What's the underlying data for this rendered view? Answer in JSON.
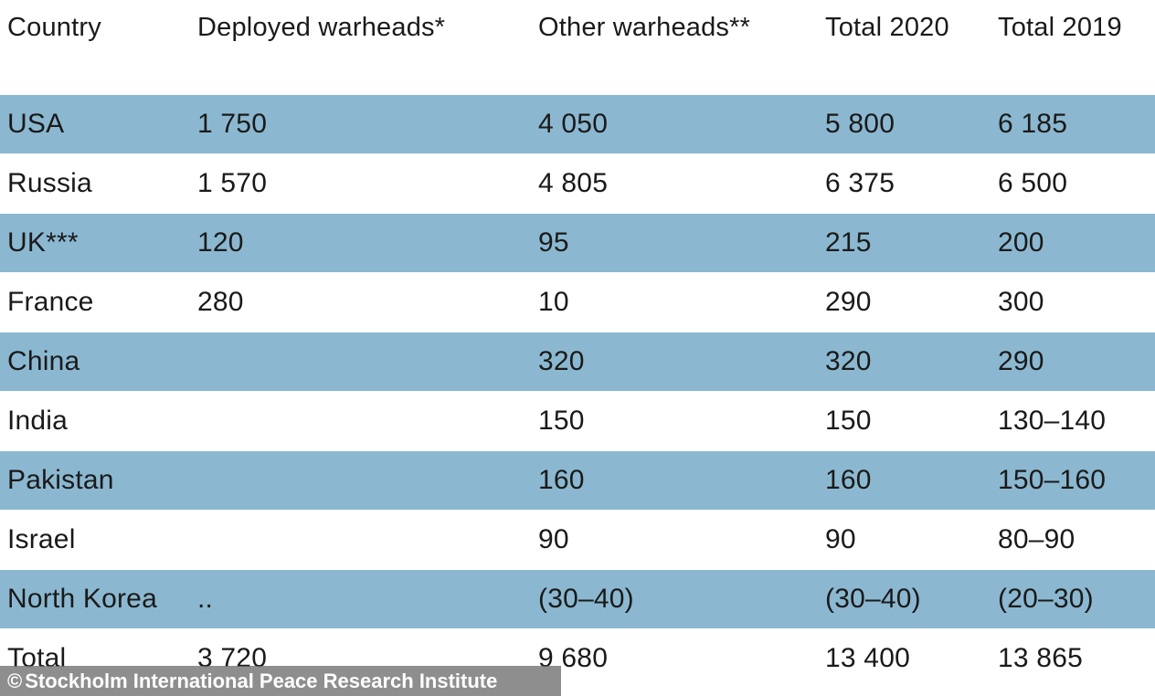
{
  "table": {
    "headers": [
      "Country",
      "Deployed warheads*",
      "Other warheads**",
      "Total 2020",
      "Total 2019"
    ],
    "rows": [
      [
        "USA",
        "1 750",
        "4 050",
        "5 800",
        "6 185"
      ],
      [
        "Russia",
        "1 570",
        "4 805",
        "6 375",
        "6 500"
      ],
      [
        "UK***",
        "120",
        "95",
        "215",
        "200"
      ],
      [
        "France",
        "280",
        "10",
        "290",
        "300"
      ],
      [
        "China",
        "",
        "320",
        "320",
        "290"
      ],
      [
        "India",
        "",
        "150",
        "150",
        "130–140"
      ],
      [
        "Pakistan",
        "",
        "160",
        "160",
        "150–160"
      ],
      [
        "Israel",
        "",
        "90",
        "90",
        "80–90"
      ],
      [
        "North Korea",
        "..",
        "(30–40)",
        "(30–40)",
        "(20–30)"
      ],
      [
        "Total",
        "3 720",
        "9 680",
        "13 400",
        "13 865"
      ]
    ],
    "row_shading": [
      true,
      false,
      true,
      false,
      true,
      false,
      true,
      false,
      true,
      false
    ],
    "shade_color": "#8bb8d0"
  },
  "credit": {
    "icon": "copyright-icon",
    "symbol": "©",
    "text": "Stockholm International Peace Research Institute"
  }
}
